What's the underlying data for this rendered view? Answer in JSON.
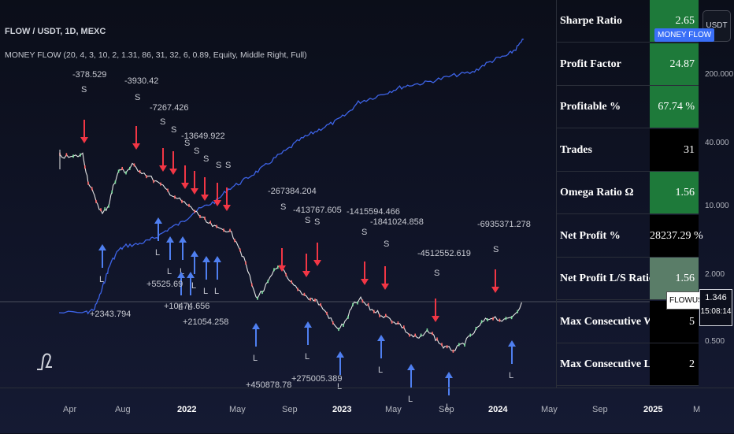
{
  "header": {
    "title": "FLOW / USDT, 1D, MEXC",
    "indicator": "MONEY FLOW (20, 4, 3, 10, 2, 1.31, 86, 31, 32, 6, 0.89, Equity, Middle Right, Full)"
  },
  "stats": [
    {
      "label": "Sharpe Ratio",
      "value": "2.65",
      "color": "#1e7a3a"
    },
    {
      "label": "Profit  Factor",
      "value": "24.87",
      "color": "#1e7a3a"
    },
    {
      "label": "Profitable %",
      "value": "67.74 %",
      "color": "#1e7a3a"
    },
    {
      "label": "Trades",
      "value": "31",
      "color": "#000000"
    },
    {
      "label": "Omega  Ratio Ω",
      "value": "1.56",
      "color": "#1e7a3a"
    },
    {
      "label": "Net Profit %",
      "value": "28237.29 %",
      "color": "#000000"
    },
    {
      "label": "Net Profit L/S Ratio",
      "value": "1.56",
      "color": "#5a7d68"
    },
    {
      "label": "Max Consecutive Wins",
      "value": "5",
      "color": "#000000"
    },
    {
      "label": "Max Consecutive Losses",
      "value": "2",
      "color": "#000000"
    }
  ],
  "price_axis": {
    "currency": "USDT",
    "labels": [
      "200.000",
      "40.000",
      "10.000",
      "2.000",
      "0.500"
    ],
    "money_flow_tag": "MONEY FLOW",
    "symbol_tag": "FLOWUSDT",
    "last_price": "1.346",
    "countdown": "15:08:14"
  },
  "time_axis": [
    {
      "label": "Apr",
      "bold": false
    },
    {
      "label": "Aug",
      "bold": false
    },
    {
      "label": "2022",
      "bold": true
    },
    {
      "label": "May",
      "bold": false
    },
    {
      "label": "Sep",
      "bold": false
    },
    {
      "label": "2023",
      "bold": true
    },
    {
      "label": "May",
      "bold": false
    },
    {
      "label": "Sep",
      "bold": false
    },
    {
      "label": "2024",
      "bold": true
    },
    {
      "label": "May",
      "bold": false
    },
    {
      "label": "Sep",
      "bold": false
    },
    {
      "label": "2025",
      "bold": true
    },
    {
      "label": "M",
      "bold": false
    }
  ],
  "annotations": {
    "short_values": [
      "-378.529",
      "-3930.42",
      "-7267.426",
      "-13649.922",
      "-267384.204",
      "-413767.605",
      "-1415594.466",
      "-1841024.858",
      "-4512552.619",
      "-6935371.278"
    ],
    "long_values": [
      "+2343.794",
      "+5525.69",
      "+10474.656",
      "+21054.258",
      "+450878.78",
      "+275005.389"
    ],
    "short_marker": "S",
    "long_marker": "L"
  },
  "colors": {
    "equity": "#3d63e6",
    "sell_arrow": "#f23645",
    "buy_arrow": "#4f7ff0",
    "price_up": "#7ee0a0",
    "price_down": "#ff6b6b"
  },
  "logo": "tradingview-logo"
}
